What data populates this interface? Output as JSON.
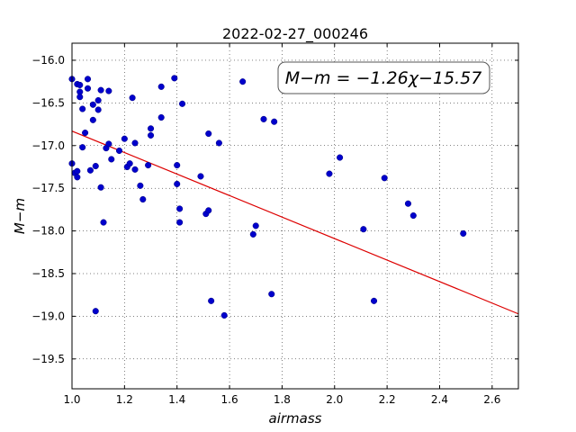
{
  "chart_data": {
    "type": "scatter",
    "title": "2022-02-27_000246",
    "xlabel": "airmass",
    "ylabel": "M−m",
    "xlim": [
      1.0,
      2.7
    ],
    "ylim": [
      -19.85,
      -15.8
    ],
    "y_inverted": true,
    "grid": true,
    "x_ticks": [
      1.0,
      1.2,
      1.4,
      1.6,
      1.8,
      2.0,
      2.2,
      2.4,
      2.6
    ],
    "x_tick_labels": [
      "1.0",
      "1.2",
      "1.4",
      "1.6",
      "1.8",
      "2.0",
      "2.2",
      "2.4",
      "2.6"
    ],
    "y_ticks": [
      -16.0,
      -16.5,
      -17.0,
      -17.5,
      -18.0,
      -18.5,
      -19.0,
      -19.5
    ],
    "y_tick_labels": [
      "−16.0",
      "−16.5",
      "−17.0",
      "−17.5",
      "−18.0",
      "−18.5",
      "−19.0",
      "−19.5"
    ],
    "annotation": "M−m = −1.26χ−15.57",
    "annotation_position": "top-right",
    "point_color": "#0000cc",
    "fit_color": "#dd0000",
    "fit": {
      "slope": -1.26,
      "intercept": -15.57,
      "x_range": [
        1.0,
        2.7
      ]
    },
    "points": [
      [
        1.0,
        -16.22
      ],
      [
        1.0,
        -17.21
      ],
      [
        1.01,
        -17.32
      ],
      [
        1.02,
        -16.28
      ],
      [
        1.03,
        -16.29
      ],
      [
        1.03,
        -16.37
      ],
      [
        1.03,
        -16.43
      ],
      [
        1.04,
        -16.57
      ],
      [
        1.02,
        -17.3
      ],
      [
        1.02,
        -17.37
      ],
      [
        1.04,
        -17.02
      ],
      [
        1.05,
        -16.85
      ],
      [
        1.06,
        -16.22
      ],
      [
        1.06,
        -16.33
      ],
      [
        1.07,
        -17.29
      ],
      [
        1.08,
        -16.52
      ],
      [
        1.08,
        -16.7
      ],
      [
        1.09,
        -17.24
      ],
      [
        1.1,
        -16.47
      ],
      [
        1.1,
        -16.58
      ],
      [
        1.11,
        -16.35
      ],
      [
        1.11,
        -17.49
      ],
      [
        1.12,
        -17.9
      ],
      [
        1.13,
        -17.03
      ],
      [
        1.14,
        -16.98
      ],
      [
        1.14,
        -16.36
      ],
      [
        1.15,
        -17.16
      ],
      [
        1.09,
        -18.94
      ],
      [
        1.18,
        -17.06
      ],
      [
        1.2,
        -16.92
      ],
      [
        1.21,
        -17.25
      ],
      [
        1.22,
        -17.21
      ],
      [
        1.23,
        -16.44
      ],
      [
        1.24,
        -17.28
      ],
      [
        1.24,
        -16.97
      ],
      [
        1.26,
        -17.47
      ],
      [
        1.27,
        -17.63
      ],
      [
        1.29,
        -17.23
      ],
      [
        1.3,
        -16.8
      ],
      [
        1.3,
        -16.88
      ],
      [
        1.34,
        -16.31
      ],
      [
        1.34,
        -16.67
      ],
      [
        1.39,
        -16.21
      ],
      [
        1.4,
        -17.23
      ],
      [
        1.4,
        -17.45
      ],
      [
        1.41,
        -17.74
      ],
      [
        1.41,
        -17.9
      ],
      [
        1.42,
        -16.51
      ],
      [
        1.49,
        -17.36
      ],
      [
        1.51,
        -17.8
      ],
      [
        1.52,
        -17.76
      ],
      [
        1.52,
        -16.86
      ],
      [
        1.53,
        -18.82
      ],
      [
        1.56,
        -16.97
      ],
      [
        1.58,
        -18.99
      ],
      [
        1.65,
        -16.25
      ],
      [
        1.69,
        -18.04
      ],
      [
        1.7,
        -17.94
      ],
      [
        1.73,
        -16.69
      ],
      [
        1.76,
        -18.74
      ],
      [
        1.77,
        -16.72
      ],
      [
        1.98,
        -17.33
      ],
      [
        2.02,
        -17.14
      ],
      [
        2.11,
        -17.98
      ],
      [
        2.15,
        -18.82
      ],
      [
        2.19,
        -17.38
      ],
      [
        2.28,
        -17.68
      ],
      [
        2.3,
        -17.82
      ],
      [
        2.49,
        -18.03
      ]
    ]
  }
}
